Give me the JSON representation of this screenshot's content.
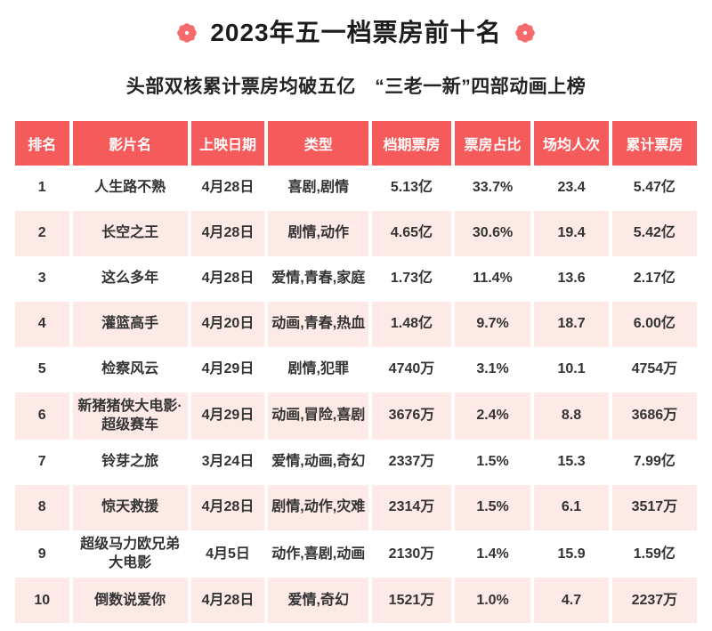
{
  "title": "2023年五一档票房前十名",
  "subtitle": "头部双核累计票房均破五亿　“三老一新”四部动画上榜",
  "icons": {
    "title_left": "flower-icon",
    "title_right": "flower-icon"
  },
  "colors": {
    "header_bg": "#f65b5c",
    "header_text": "#ffffff",
    "row_alt_bg": "#fdeae7",
    "body_text": "#333333",
    "title_text": "#1c1c1c",
    "flower": "#f56a6a"
  },
  "chart_data": {
    "type": "table",
    "title": "2023年五一档票房前十名",
    "subtitle": "头部双核累计票房均破五亿　“三老一新”四部动画上榜",
    "columns": [
      "排名",
      "影片名",
      "上映日期",
      "类型",
      "档期票房",
      "票房占比",
      "场均人次",
      "累计票房"
    ],
    "rows": [
      [
        "1",
        "人生路不熟",
        "4月28日",
        "喜剧,剧情",
        "5.13亿",
        "33.7%",
        "23.4",
        "5.47亿"
      ],
      [
        "2",
        "长空之王",
        "4月28日",
        "剧情,动作",
        "4.65亿",
        "30.6%",
        "19.4",
        "5.42亿"
      ],
      [
        "3",
        "这么多年",
        "4月28日",
        "爱情,青春,家庭",
        "1.73亿",
        "11.4%",
        "13.6",
        "2.17亿"
      ],
      [
        "4",
        "灌篮高手",
        "4月20日",
        "动画,青春,热血",
        "1.48亿",
        "9.7%",
        "18.7",
        "6.00亿"
      ],
      [
        "5",
        "检察风云",
        "4月29日",
        "剧情,犯罪",
        "4740万",
        "3.1%",
        "10.1",
        "4754万"
      ],
      [
        "6",
        "新猪猪侠大电影·超级赛车",
        "4月29日",
        "动画,冒险,喜剧",
        "3676万",
        "2.4%",
        "8.8",
        "3686万"
      ],
      [
        "7",
        "铃芽之旅",
        "3月24日",
        "爱情,动画,奇幻",
        "2337万",
        "1.5%",
        "15.3",
        "7.99亿"
      ],
      [
        "8",
        "惊天救援",
        "4月28日",
        "剧情,动作,灾难",
        "2314万",
        "1.5%",
        "6.1",
        "3517万"
      ],
      [
        "9",
        "超级马力欧兄弟大电影",
        "4月5日",
        "动作,喜剧,动画",
        "2130万",
        "1.4%",
        "15.9",
        "1.59亿"
      ],
      [
        "10",
        "倒数说爱你",
        "4月28日",
        "爱情,奇幻",
        "1521万",
        "1.0%",
        "4.7",
        "2237万"
      ]
    ]
  }
}
